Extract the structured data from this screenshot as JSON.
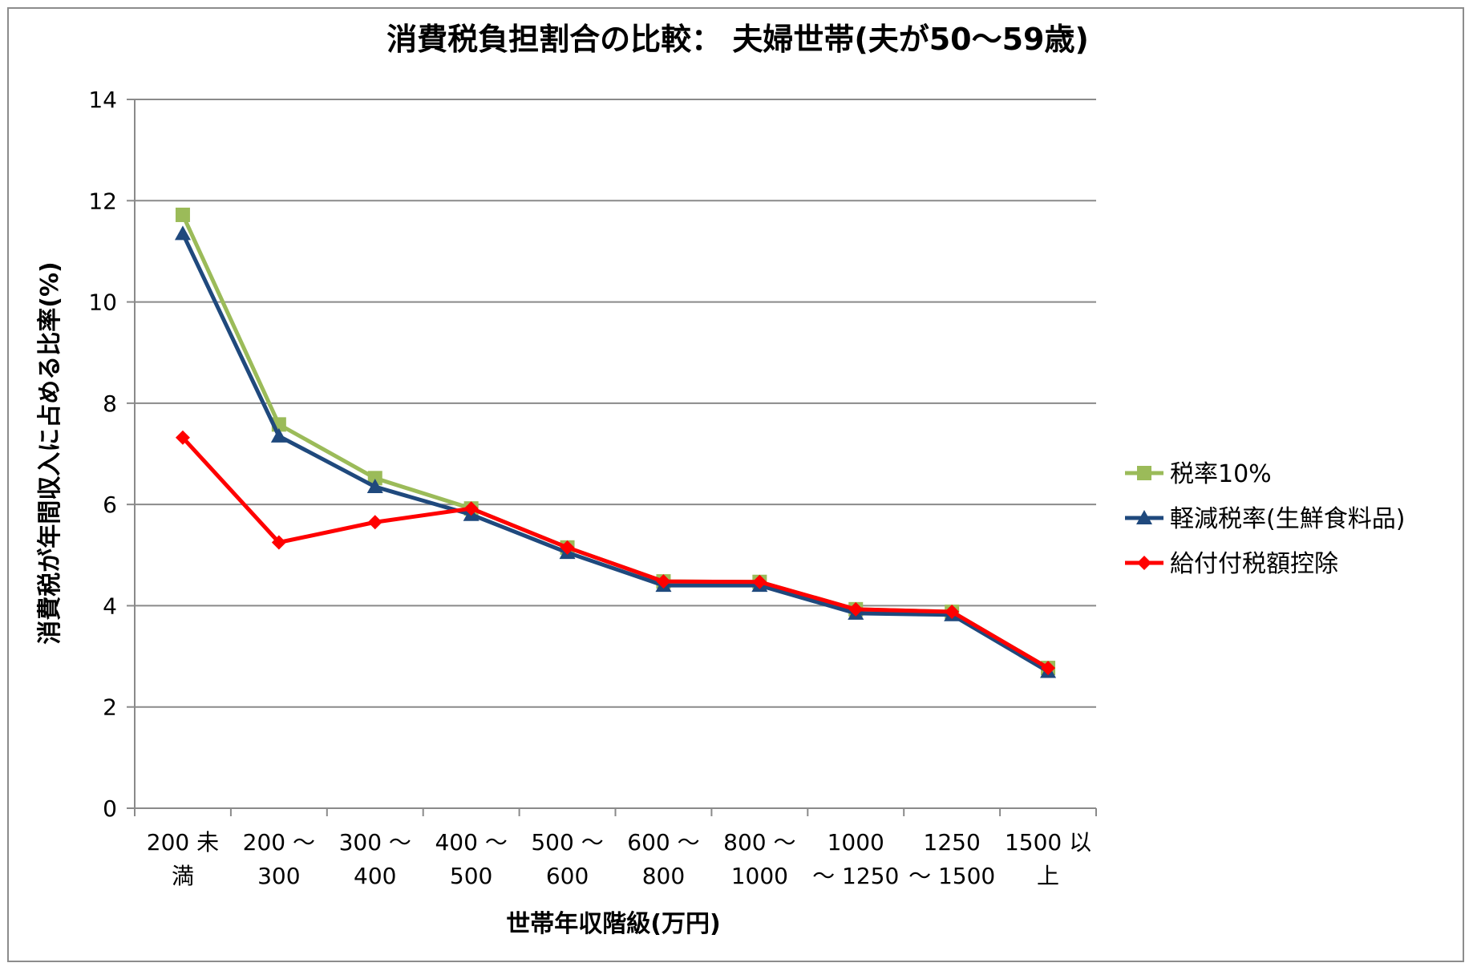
{
  "chart_data": {
    "type": "line",
    "title": "消費税負担割合の比較： 夫婦世帯(夫が50～59歳)",
    "xlabel": "世帯年収階級(万円)",
    "ylabel": "消費税が年間収入に占める比率(%)",
    "ylim": [
      0,
      14
    ],
    "y_ticks": [
      "0",
      "2",
      "4",
      "6",
      "8",
      "10",
      "12",
      "14"
    ],
    "grid": true,
    "legend_position": "right",
    "categories": [
      [
        "200 未",
        "満"
      ],
      [
        "200 ～",
        "300"
      ],
      [
        "300 ～",
        "400"
      ],
      [
        "400 ～",
        "500"
      ],
      [
        "500 ～",
        "600"
      ],
      [
        "600 ～",
        "800"
      ],
      [
        "800 ～",
        "1000"
      ],
      [
        "1000",
        "～ 1250"
      ],
      [
        "1250",
        "～ 1500"
      ],
      [
        "1500 以",
        "上"
      ]
    ],
    "series": [
      {
        "name": "税率10%",
        "color": "#9bbb59",
        "marker": "square",
        "values": [
          11.72,
          7.58,
          6.52,
          5.92,
          5.15,
          4.48,
          4.47,
          3.93,
          3.88,
          2.77
        ]
      },
      {
        "name": "軽減税率(生鮮食料品)",
        "color": "#1f497d",
        "marker": "triangle",
        "values": [
          11.35,
          7.35,
          6.35,
          5.8,
          5.05,
          4.4,
          4.4,
          3.85,
          3.82,
          2.7
        ]
      },
      {
        "name": "給付付税額控除",
        "color": "#ff0000",
        "marker": "diamond",
        "values": [
          7.32,
          5.25,
          5.65,
          5.92,
          5.15,
          4.48,
          4.47,
          3.93,
          3.88,
          2.77
        ]
      }
    ]
  }
}
